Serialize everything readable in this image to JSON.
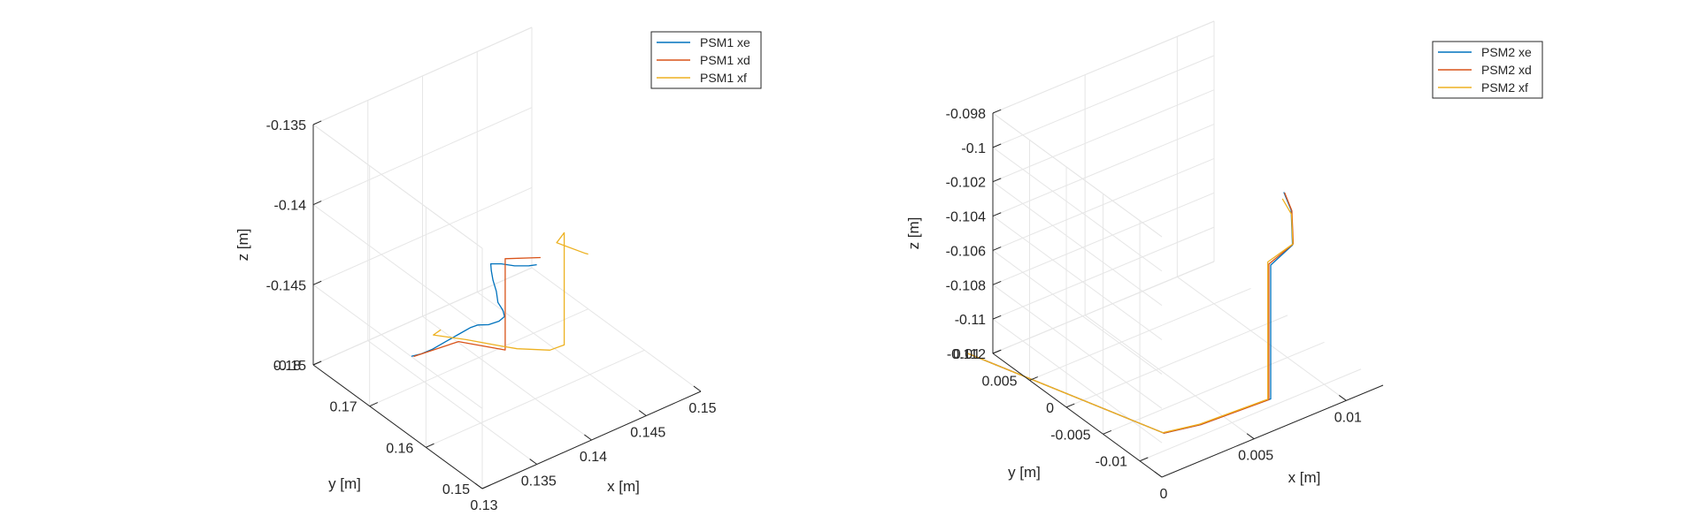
{
  "figure": {
    "background": "#ffffff"
  },
  "chart_data": [
    {
      "type": "line",
      "xlabel": "x [m]",
      "ylabel": "y [m]",
      "zlabel": "z [m]",
      "xlim": [
        0.13,
        0.15
      ],
      "ylim": [
        0.15,
        0.18
      ],
      "zlim": [
        -0.15,
        -0.135
      ],
      "xticks": [
        0.13,
        0.135,
        0.14,
        0.145,
        0.15
      ],
      "xtick_labels": [
        "0.13",
        "0.135",
        "0.14",
        "0.145",
        "0.15"
      ],
      "yticks": [
        0.15,
        0.16,
        0.17,
        0.18
      ],
      "ytick_labels": [
        "0.15",
        "0.16",
        "0.17",
        "0.18"
      ],
      "zticks": [
        -0.15,
        -0.145,
        -0.14,
        -0.135
      ],
      "ztick_labels": [
        "-0.15",
        "-0.145",
        "-0.14",
        "-0.135"
      ],
      "grid": true,
      "legend_position": "top-right",
      "series": [
        {
          "name": "PSM1 xe",
          "color": "#0072BD",
          "points": [
            [
              0.1329,
              0.1682,
              -0.1473
            ],
            [
              0.1334,
              0.1674,
              -0.1471
            ],
            [
              0.1339,
              0.1664,
              -0.1467
            ],
            [
              0.1345,
              0.1652,
              -0.1461
            ],
            [
              0.1351,
              0.164,
              -0.1455
            ],
            [
              0.1356,
              0.163,
              -0.145
            ],
            [
              0.136,
              0.1624,
              -0.1448
            ],
            [
              0.1365,
              0.1615,
              -0.1447
            ],
            [
              0.137,
              0.1606,
              -0.1444
            ],
            [
              0.1373,
              0.1602,
              -0.1441
            ],
            [
              0.1372,
              0.1603,
              -0.1437
            ],
            [
              0.1369,
              0.1606,
              -0.1432
            ],
            [
              0.1368,
              0.1607,
              -0.1425
            ],
            [
              0.1366,
              0.1609,
              -0.1418
            ],
            [
              0.1365,
              0.161,
              -0.1412
            ],
            [
              0.1365,
              0.1611,
              -0.1408
            ],
            [
              0.1371,
              0.1604,
              -0.1408
            ],
            [
              0.1377,
              0.1592,
              -0.1408
            ],
            [
              0.1384,
              0.158,
              -0.1407
            ],
            [
              0.1388,
              0.1574,
              -0.1406
            ]
          ]
        },
        {
          "name": "PSM1 xd",
          "color": "#D95319",
          "points": [
            [
              0.133,
              0.168,
              -0.1473
            ],
            [
              0.1351,
              0.1641,
              -0.146
            ],
            [
              0.1371,
              0.1597,
              -0.146
            ],
            [
              0.1371,
              0.1597,
              -0.1403
            ],
            [
              0.1392,
              0.1575,
              -0.1403
            ]
          ]
        },
        {
          "name": "PSM1 xf",
          "color": "#EDB120",
          "points": [
            [
              0.136,
              0.169,
              -0.1468
            ],
            [
              0.1348,
              0.168,
              -0.1465
            ],
            [
              0.1363,
              0.1651,
              -0.1465
            ],
            [
              0.1378,
              0.1618,
              -0.1465
            ],
            [
              0.1385,
              0.1603,
              -0.1465
            ],
            [
              0.1415,
              0.1603,
              -0.1475
            ],
            [
              0.1426,
              0.1599,
              -0.1474
            ],
            [
              0.1426,
              0.1599,
              -0.1404
            ],
            [
              0.1414,
              0.1589,
              -0.1404
            ],
            [
              0.1432,
              0.1573,
              -0.1412
            ],
            [
              0.1433,
              0.157,
              -0.1412
            ]
          ]
        }
      ]
    },
    {
      "type": "line",
      "xlabel": "x [m]",
      "ylabel": "y [m]",
      "zlabel": "z [m]",
      "xlim": [
        0,
        0.012
      ],
      "ylim": [
        -0.013,
        0.01
      ],
      "zlim": [
        -0.112,
        -0.098
      ],
      "xticks": [
        0,
        0.005,
        0.01
      ],
      "xtick_labels": [
        "0",
        "0.005",
        "0.01"
      ],
      "yticks": [
        -0.01,
        -0.005,
        0,
        0.005,
        0.01
      ],
      "ytick_labels": [
        "-0.01",
        "-0.005",
        "0",
        "0.005",
        "0.01"
      ],
      "zticks": [
        -0.112,
        -0.11,
        -0.108,
        -0.106,
        -0.104,
        -0.102,
        -0.1,
        -0.098
      ],
      "ztick_labels": [
        "-0.112",
        "-0.11",
        "-0.108",
        "-0.106",
        "-0.104",
        "-0.102",
        "-0.1",
        "-0.098"
      ],
      "grid": true,
      "legend_position": "top-right",
      "series": [
        {
          "name": "PSM2 xe",
          "color": "#0072BD",
          "points": [
            [
              -0.0015,
              0.0095,
              -0.1112
            ],
            [
              0.0015,
              -0.0095,
              -0.1112
            ],
            [
              0.0035,
              -0.0095,
              -0.1116
            ],
            [
              0.0073,
              -0.0095,
              -0.1118
            ],
            [
              0.0073,
              -0.0095,
              -0.104
            ],
            [
              0.009,
              -0.0082,
              -0.104
            ],
            [
              0.0106,
              -0.004,
              -0.104
            ],
            [
              0.0112,
              -0.0015,
              -0.104
            ]
          ]
        },
        {
          "name": "PSM2 xd",
          "color": "#D95319",
          "points": [
            [
              -0.0015,
              0.0095,
              -0.1112
            ],
            [
              0.0015,
              -0.0095,
              -0.1112
            ],
            [
              0.0035,
              -0.0095,
              -0.1116
            ],
            [
              0.0072,
              -0.0095,
              -0.1118
            ],
            [
              0.0072,
              -0.0095,
              -0.1039
            ],
            [
              0.009,
              -0.0083,
              -0.1039
            ],
            [
              0.0106,
              -0.0041,
              -0.104
            ],
            [
              0.0112,
              -0.0016,
              -0.104
            ]
          ]
        },
        {
          "name": "PSM2 xf",
          "color": "#EDB120",
          "points": [
            [
              -0.0016,
              0.0094,
              -0.1111
            ],
            [
              0.0014,
              -0.0096,
              -0.1111
            ],
            [
              0.0034,
              -0.0096,
              -0.1115
            ],
            [
              0.0071,
              -0.0096,
              -0.1117
            ],
            [
              0.0071,
              -0.0096,
              -0.1037
            ],
            [
              0.0089,
              -0.0085,
              -0.1038
            ],
            [
              0.0105,
              -0.0043,
              -0.1041
            ],
            [
              0.011,
              -0.0018,
              -0.1042
            ]
          ]
        }
      ]
    }
  ]
}
